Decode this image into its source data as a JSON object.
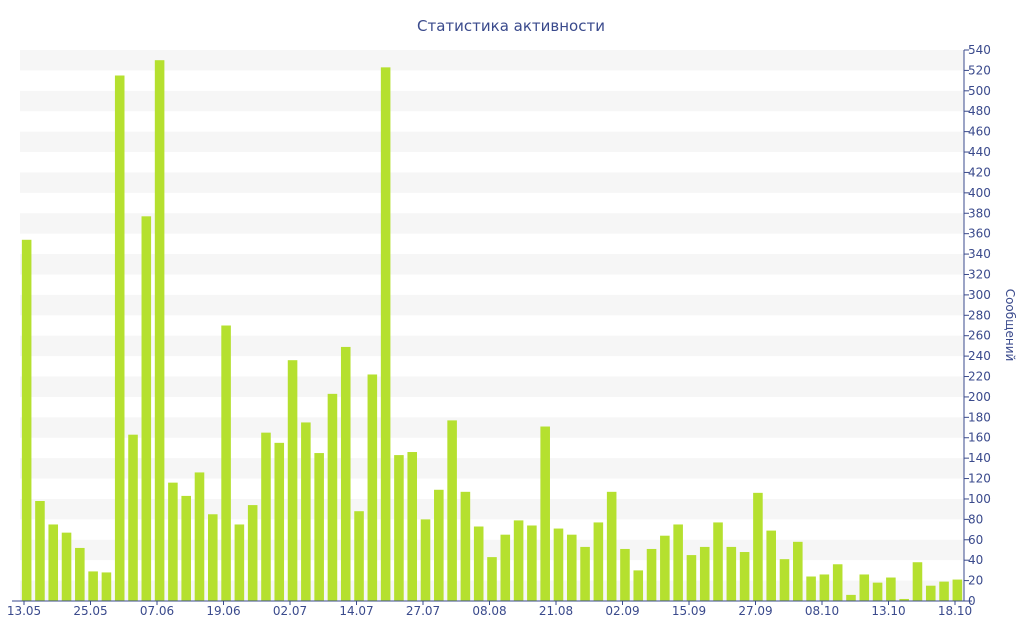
{
  "chart_data": {
    "type": "bar",
    "title": "Статистика активности",
    "xlabel": "",
    "ylabel": "Сообщений",
    "y_axis_side": "right",
    "ylim": [
      0,
      540
    ],
    "ytick_step": 20,
    "bar_color": "#b5e02f",
    "band_color": "#f6f6f6",
    "axis_color": "#3a4a8c",
    "x_ticks": [
      "13.05",
      "25.05",
      "07.06",
      "19.06",
      "02.07",
      "14.07",
      "27.07",
      "08.08",
      "21.08",
      "02.09",
      "15.09",
      "27.09",
      "08.10",
      "13.10",
      "18.10"
    ],
    "values": [
      354,
      98,
      75,
      67,
      52,
      29,
      28,
      515,
      163,
      377,
      530,
      116,
      103,
      126,
      85,
      270,
      75,
      94,
      165,
      155,
      236,
      175,
      145,
      203,
      249,
      88,
      222,
      523,
      143,
      146,
      80,
      109,
      177,
      107,
      73,
      43,
      65,
      79,
      74,
      171,
      71,
      65,
      53,
      77,
      107,
      51,
      30,
      51,
      64,
      75,
      45,
      53,
      77,
      53,
      48,
      106,
      69,
      41,
      58,
      24,
      26,
      36,
      6,
      26,
      18,
      23,
      2,
      38,
      15,
      19,
      21
    ]
  }
}
